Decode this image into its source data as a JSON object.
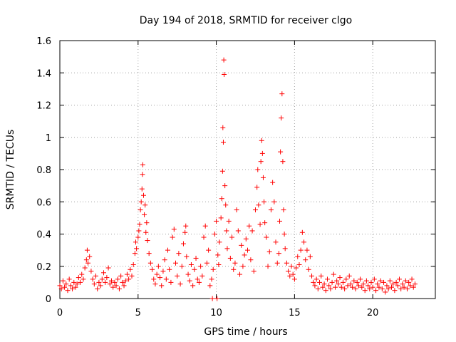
{
  "chart_data": {
    "type": "scatter",
    "title": "Day 194 of 2018, SRMTID for receiver clgo",
    "xlabel": "GPS time / hours",
    "ylabel": "SRMTID / TECUs",
    "xlim": [
      0,
      24
    ],
    "ylim": [
      0,
      1.6
    ],
    "xticks": [
      0,
      5,
      10,
      15,
      20
    ],
    "xtick_labels": [
      "0",
      "5",
      "10",
      "15",
      "20"
    ],
    "yticks": [
      0,
      0.2,
      0.4,
      0.6,
      0.8,
      1,
      1.2,
      1.4,
      1.6
    ],
    "ytick_labels": [
      "0",
      "0.2",
      "0.4",
      "0.6",
      "0.8",
      "1",
      "1.2",
      "1.4",
      "1.6"
    ],
    "grid": true,
    "marker": "+",
    "marker_color": "#ff0000",
    "series": [
      {
        "name": "SRMTID",
        "points": [
          [
            0.0,
            0.08
          ],
          [
            0.1,
            0.06
          ],
          [
            0.2,
            0.11
          ],
          [
            0.3,
            0.07
          ],
          [
            0.4,
            0.09
          ],
          [
            0.5,
            0.05
          ],
          [
            0.6,
            0.12
          ],
          [
            0.7,
            0.08
          ],
          [
            0.8,
            0.06
          ],
          [
            0.9,
            0.1
          ],
          [
            1.0,
            0.07
          ],
          [
            1.1,
            0.09
          ],
          [
            1.2,
            0.13
          ],
          [
            1.3,
            0.1
          ],
          [
            1.4,
            0.15
          ],
          [
            1.5,
            0.12
          ],
          [
            1.6,
            0.19
          ],
          [
            1.7,
            0.24
          ],
          [
            1.75,
            0.3
          ],
          [
            1.8,
            0.22
          ],
          [
            1.9,
            0.26
          ],
          [
            2.0,
            0.17
          ],
          [
            2.1,
            0.12
          ],
          [
            2.2,
            0.09
          ],
          [
            2.3,
            0.14
          ],
          [
            2.4,
            0.06
          ],
          [
            2.5,
            0.1
          ],
          [
            2.6,
            0.08
          ],
          [
            2.7,
            0.12
          ],
          [
            2.8,
            0.16
          ],
          [
            2.9,
            0.1
          ],
          [
            3.0,
            0.13
          ],
          [
            3.1,
            0.19
          ],
          [
            3.2,
            0.09
          ],
          [
            3.3,
            0.11
          ],
          [
            3.4,
            0.07
          ],
          [
            3.5,
            0.1
          ],
          [
            3.6,
            0.08
          ],
          [
            3.7,
            0.12
          ],
          [
            3.8,
            0.06
          ],
          [
            3.9,
            0.14
          ],
          [
            4.0,
            0.1
          ],
          [
            4.1,
            0.08
          ],
          [
            4.2,
            0.11
          ],
          [
            4.3,
            0.15
          ],
          [
            4.4,
            0.12
          ],
          [
            4.5,
            0.18
          ],
          [
            4.6,
            0.14
          ],
          [
            4.7,
            0.21
          ],
          [
            4.8,
            0.28
          ],
          [
            4.85,
            0.35
          ],
          [
            4.9,
            0.31
          ],
          [
            5.0,
            0.38
          ],
          [
            5.05,
            0.42
          ],
          [
            5.1,
            0.46
          ],
          [
            5.15,
            0.55
          ],
          [
            5.2,
            0.6
          ],
          [
            5.25,
            0.68
          ],
          [
            5.28,
            0.77
          ],
          [
            5.3,
            0.83
          ],
          [
            5.35,
            0.64
          ],
          [
            5.4,
            0.52
          ],
          [
            5.45,
            0.58
          ],
          [
            5.5,
            0.41
          ],
          [
            5.55,
            0.47
          ],
          [
            5.6,
            0.36
          ],
          [
            5.7,
            0.28
          ],
          [
            5.8,
            0.22
          ],
          [
            5.9,
            0.18
          ],
          [
            6.0,
            0.12
          ],
          [
            6.1,
            0.09
          ],
          [
            6.2,
            0.15
          ],
          [
            6.3,
            0.2
          ],
          [
            6.4,
            0.13
          ],
          [
            6.5,
            0.08
          ],
          [
            6.6,
            0.17
          ],
          [
            6.7,
            0.24
          ],
          [
            6.8,
            0.12
          ],
          [
            6.9,
            0.3
          ],
          [
            7.0,
            0.18
          ],
          [
            7.1,
            0.1
          ],
          [
            7.2,
            0.38
          ],
          [
            7.3,
            0.43
          ],
          [
            7.4,
            0.22
          ],
          [
            7.5,
            0.14
          ],
          [
            7.6,
            0.28
          ],
          [
            7.7,
            0.09
          ],
          [
            7.8,
            0.2
          ],
          [
            7.9,
            0.34
          ],
          [
            8.0,
            0.41
          ],
          [
            8.05,
            0.45
          ],
          [
            8.1,
            0.26
          ],
          [
            8.2,
            0.15
          ],
          [
            8.3,
            0.11
          ],
          [
            8.4,
            0.21
          ],
          [
            8.5,
            0.08
          ],
          [
            8.6,
            0.18
          ],
          [
            8.7,
            0.25
          ],
          [
            8.8,
            0.12
          ],
          [
            8.9,
            0.1
          ],
          [
            9.0,
            0.2
          ],
          [
            9.1,
            0.14
          ],
          [
            9.2,
            0.38
          ],
          [
            9.3,
            0.45
          ],
          [
            9.4,
            0.22
          ],
          [
            9.5,
            0.3
          ],
          [
            9.6,
            0.08
          ],
          [
            9.7,
            0.12
          ],
          [
            9.75,
            0.0
          ],
          [
            9.8,
            0.18
          ],
          [
            9.9,
            0.4
          ],
          [
            10.0,
            0.48
          ],
          [
            10.05,
            0.0
          ],
          [
            10.1,
            0.27
          ],
          [
            10.15,
            0.21
          ],
          [
            10.2,
            0.35
          ],
          [
            10.3,
            0.5
          ],
          [
            10.35,
            0.62
          ],
          [
            10.4,
            0.79
          ],
          [
            10.42,
            1.06
          ],
          [
            10.45,
            0.97
          ],
          [
            10.48,
            1.48
          ],
          [
            10.5,
            1.39
          ],
          [
            10.55,
            0.7
          ],
          [
            10.6,
            0.58
          ],
          [
            10.65,
            0.42
          ],
          [
            10.7,
            0.31
          ],
          [
            10.8,
            0.48
          ],
          [
            10.9,
            0.25
          ],
          [
            11.0,
            0.38
          ],
          [
            11.1,
            0.18
          ],
          [
            11.2,
            0.22
          ],
          [
            11.3,
            0.55
          ],
          [
            11.4,
            0.42
          ],
          [
            11.5,
            0.15
          ],
          [
            11.6,
            0.33
          ],
          [
            11.7,
            0.2
          ],
          [
            11.8,
            0.27
          ],
          [
            11.9,
            0.37
          ],
          [
            12.0,
            0.3
          ],
          [
            12.1,
            0.45
          ],
          [
            12.2,
            0.24
          ],
          [
            12.3,
            0.42
          ],
          [
            12.4,
            0.17
          ],
          [
            12.5,
            0.55
          ],
          [
            12.6,
            0.69
          ],
          [
            12.65,
            0.8
          ],
          [
            12.7,
            0.58
          ],
          [
            12.8,
            0.46
          ],
          [
            12.85,
            0.85
          ],
          [
            12.9,
            0.98
          ],
          [
            12.95,
            0.9
          ],
          [
            13.0,
            0.75
          ],
          [
            13.05,
            0.6
          ],
          [
            13.1,
            0.47
          ],
          [
            13.2,
            0.38
          ],
          [
            13.3,
            0.2
          ],
          [
            13.4,
            0.29
          ],
          [
            13.5,
            0.55
          ],
          [
            13.6,
            0.72
          ],
          [
            13.7,
            0.6
          ],
          [
            13.8,
            0.35
          ],
          [
            13.9,
            0.22
          ],
          [
            14.0,
            0.28
          ],
          [
            14.05,
            0.48
          ],
          [
            14.1,
            0.91
          ],
          [
            14.15,
            1.12
          ],
          [
            14.2,
            1.27
          ],
          [
            14.25,
            0.85
          ],
          [
            14.3,
            0.55
          ],
          [
            14.35,
            0.4
          ],
          [
            14.4,
            0.31
          ],
          [
            14.5,
            0.22
          ],
          [
            14.6,
            0.17
          ],
          [
            14.7,
            0.14
          ],
          [
            14.8,
            0.2
          ],
          [
            14.9,
            0.15
          ],
          [
            15.0,
            0.12
          ],
          [
            15.1,
            0.19
          ],
          [
            15.2,
            0.26
          ],
          [
            15.3,
            0.21
          ],
          [
            15.4,
            0.3
          ],
          [
            15.5,
            0.41
          ],
          [
            15.6,
            0.35
          ],
          [
            15.7,
            0.24
          ],
          [
            15.8,
            0.3
          ],
          [
            15.9,
            0.18
          ],
          [
            16.0,
            0.26
          ],
          [
            16.1,
            0.14
          ],
          [
            16.2,
            0.1
          ],
          [
            16.3,
            0.08
          ],
          [
            16.4,
            0.12
          ],
          [
            16.5,
            0.06
          ],
          [
            16.6,
            0.1
          ],
          [
            16.7,
            0.14
          ],
          [
            16.8,
            0.07
          ],
          [
            16.9,
            0.09
          ],
          [
            17.0,
            0.05
          ],
          [
            17.1,
            0.12
          ],
          [
            17.2,
            0.08
          ],
          [
            17.3,
            0.06
          ],
          [
            17.4,
            0.1
          ],
          [
            17.5,
            0.15
          ],
          [
            17.6,
            0.07
          ],
          [
            17.7,
            0.11
          ],
          [
            17.8,
            0.09
          ],
          [
            17.9,
            0.13
          ],
          [
            18.0,
            0.07
          ],
          [
            18.1,
            0.1
          ],
          [
            18.2,
            0.06
          ],
          [
            18.3,
            0.12
          ],
          [
            18.4,
            0.08
          ],
          [
            18.5,
            0.14
          ],
          [
            18.6,
            0.09
          ],
          [
            18.7,
            0.07
          ],
          [
            18.8,
            0.11
          ],
          [
            18.9,
            0.06
          ],
          [
            19.0,
            0.1
          ],
          [
            19.1,
            0.08
          ],
          [
            19.2,
            0.12
          ],
          [
            19.3,
            0.07
          ],
          [
            19.4,
            0.09
          ],
          [
            19.5,
            0.05
          ],
          [
            19.6,
            0.11
          ],
          [
            19.7,
            0.08
          ],
          [
            19.8,
            0.06
          ],
          [
            19.9,
            0.1
          ],
          [
            20.0,
            0.07
          ],
          [
            20.1,
            0.12
          ],
          [
            20.2,
            0.05
          ],
          [
            20.3,
            0.09
          ],
          [
            20.4,
            0.07
          ],
          [
            20.5,
            0.11
          ],
          [
            20.6,
            0.06
          ],
          [
            20.7,
            0.1
          ],
          [
            20.8,
            0.04
          ],
          [
            20.9,
            0.08
          ],
          [
            21.0,
            0.06
          ],
          [
            21.1,
            0.11
          ],
          [
            21.2,
            0.07
          ],
          [
            21.3,
            0.09
          ],
          [
            21.4,
            0.05
          ],
          [
            21.5,
            0.1
          ],
          [
            21.6,
            0.08
          ],
          [
            21.7,
            0.12
          ],
          [
            21.8,
            0.06
          ],
          [
            21.9,
            0.09
          ],
          [
            22.0,
            0.07
          ],
          [
            22.1,
            0.11
          ],
          [
            22.2,
            0.06
          ],
          [
            22.3,
            0.1
          ],
          [
            22.4,
            0.08
          ],
          [
            22.5,
            0.12
          ],
          [
            22.6,
            0.07
          ],
          [
            22.7,
            0.09
          ]
        ]
      }
    ]
  }
}
